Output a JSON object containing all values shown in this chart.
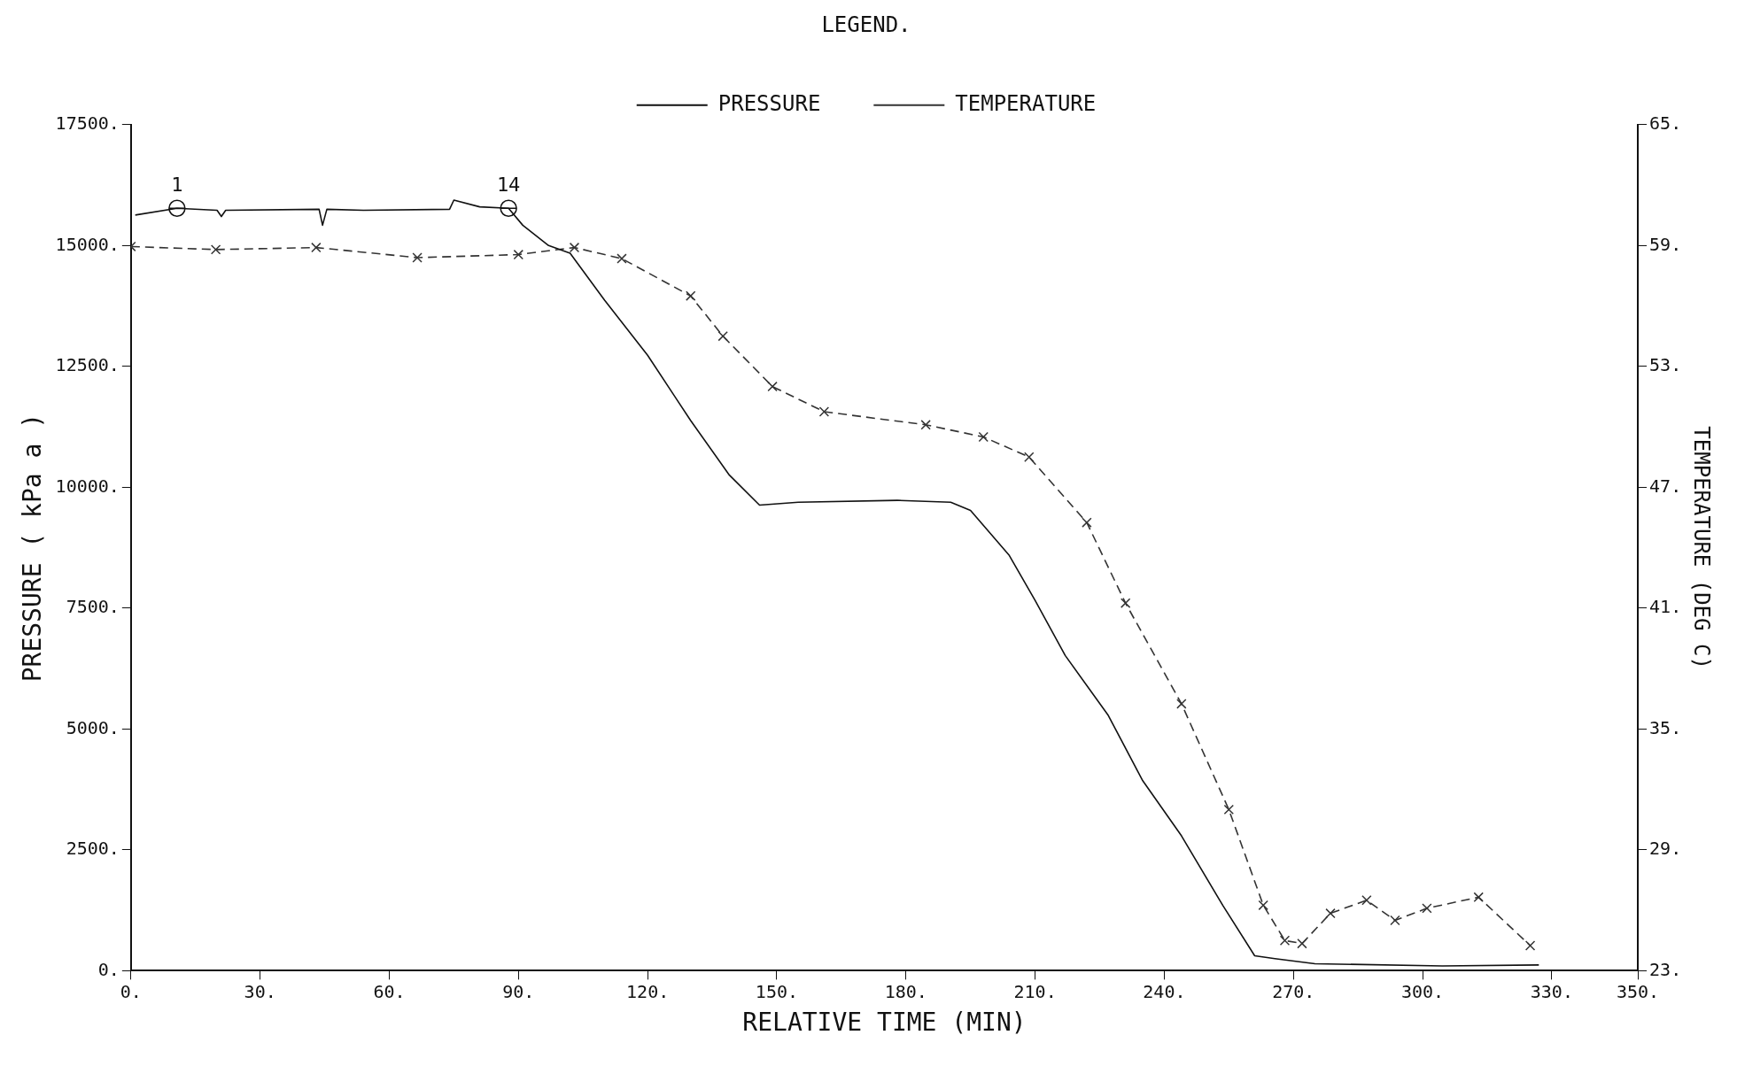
{
  "chart_data": {
    "type": "line",
    "xlabel": "RELATIVE TIME (MIN)",
    "ylabel": "PRESSURE ( kPa a )",
    "y2label": "TEMPERATURE (DEG C)",
    "legend_title": "LEGEND.",
    "legend": "top",
    "grid": false,
    "xlim": [
      0,
      350
    ],
    "xticks": [
      {
        "value": 0,
        "label": "0."
      },
      {
        "value": 30,
        "label": "30."
      },
      {
        "value": 60,
        "label": "60."
      },
      {
        "value": 90,
        "label": "90."
      },
      {
        "value": 120,
        "label": "120."
      },
      {
        "value": 150,
        "label": "150."
      },
      {
        "value": 180,
        "label": "180."
      },
      {
        "value": 210,
        "label": "210."
      },
      {
        "value": 240,
        "label": "240."
      },
      {
        "value": 270,
        "label": "270."
      },
      {
        "value": 300,
        "label": "300."
      },
      {
        "value": 330,
        "label": "330."
      },
      {
        "value": 350,
        "label": "350."
      }
    ],
    "ylim": [
      0,
      17500
    ],
    "yticks": [
      {
        "value": 0,
        "label": "0."
      },
      {
        "value": 2500,
        "label": "2500."
      },
      {
        "value": 5000,
        "label": "5000."
      },
      {
        "value": 7500,
        "label": "7500."
      },
      {
        "value": 10000,
        "label": "10000."
      },
      {
        "value": 12500,
        "label": "12500."
      },
      {
        "value": 15000,
        "label": "15000."
      },
      {
        "value": 17500,
        "label": "17500."
      }
    ],
    "y2lim": [
      23,
      65
    ],
    "y2ticks": [
      {
        "value": 23,
        "label": "23."
      },
      {
        "value": 29,
        "label": "29."
      },
      {
        "value": 35,
        "label": "35."
      },
      {
        "value": 41,
        "label": "41."
      },
      {
        "value": 47,
        "label": "47."
      },
      {
        "value": 53,
        "label": "53."
      },
      {
        "value": 59,
        "label": "59."
      },
      {
        "value": 65,
        "label": "65."
      }
    ],
    "annotations": [
      {
        "text": "1",
        "x": 10.7,
        "y": 15770
      },
      {
        "text": "14",
        "x": 87.7,
        "y": 15770
      }
    ],
    "series": [
      {
        "name": "PRESSURE",
        "color": "#111111",
        "marker": "none",
        "line_style": "solid",
        "x": [
          1,
          10.7,
          20,
          21,
          22,
          43.7,
          44.5,
          45.5,
          54,
          74,
          75,
          81,
          87.7,
          91,
          97,
          102,
          110,
          120,
          130,
          139,
          146,
          155,
          178,
          190.4,
          195,
          204,
          210,
          217,
          227,
          235,
          244,
          253.6,
          261,
          265.7,
          275,
          304.6,
          327
        ],
        "values": [
          15630,
          15770,
          15730,
          15600,
          15730,
          15750,
          15420,
          15750,
          15730,
          15750,
          15940,
          15800,
          15770,
          15420,
          15000,
          14840,
          13870,
          12730,
          11380,
          10250,
          9630,
          9690,
          9730,
          9690,
          9520,
          8590,
          7660,
          6520,
          5280,
          3930,
          2790,
          1350,
          310,
          250,
          145,
          100,
          120
        ]
      },
      {
        "name": "TEMPERATURE",
        "color": "#333333",
        "marker": "cross",
        "line_style": "dashed",
        "axis": "y2",
        "x": [
          0,
          19.7,
          43,
          66.5,
          90,
          103,
          114,
          130,
          137.5,
          149,
          161,
          184.6,
          198,
          208.6,
          222,
          231,
          244,
          255,
          263,
          268,
          272,
          278.6,
          287,
          293.6,
          301,
          313,
          325
        ],
        "values": [
          58.95,
          58.8,
          58.9,
          58.4,
          58.55,
          58.9,
          58.35,
          56.5,
          54.5,
          52,
          50.75,
          50.1,
          49.5,
          48.5,
          45.25,
          41.25,
          36.25,
          31,
          26.25,
          24.5,
          24.35,
          25.85,
          26.5,
          25.5,
          26.1,
          26.65,
          24.25
        ]
      }
    ]
  }
}
